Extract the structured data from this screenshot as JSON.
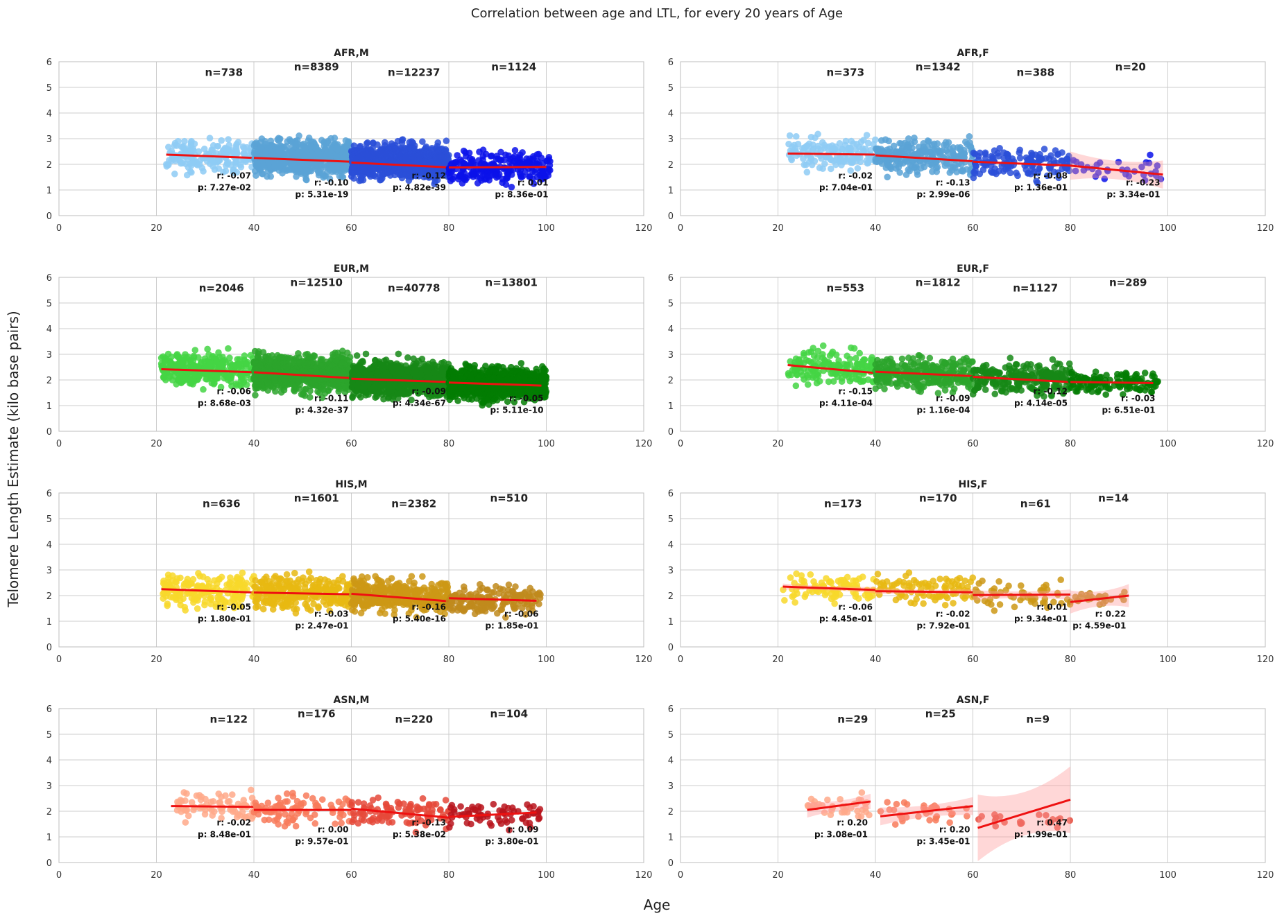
{
  "figure": {
    "title": "Correlation between age and LTL, for every 20 years of Age",
    "xlabel": "Age",
    "ylabel": "Telomere Length Estimate (kilo base pairs)"
  },
  "chart_data": [
    {
      "type": "scatter",
      "title": "AFR,M",
      "xlim": [
        0,
        120
      ],
      "ylim": [
        0,
        6
      ],
      "x_ticks": [
        0,
        20,
        40,
        60,
        80,
        100,
        120
      ],
      "y_ticks": [
        0,
        1,
        2,
        3,
        4,
        5,
        6
      ],
      "grid": true,
      "colors": [
        "#8ecbf5",
        "#5ba3d6",
        "#2a4fd8",
        "#0a12ea"
      ],
      "bins": [
        {
          "x_range": [
            22,
            40
          ],
          "y_center": 2.3,
          "y_spread": 0.9,
          "n": "n=738",
          "r": "r: -0.07",
          "p": "p: 7.27e-02",
          "fit": [
            [
              22,
              2.38
            ],
            [
              40,
              2.25
            ]
          ]
        },
        {
          "x_range": [
            40,
            60
          ],
          "y_center": 2.25,
          "y_spread": 1.0,
          "n": "n=8389",
          "r": "r: -0.10",
          "p": "p: 5.31e-19",
          "fit": [
            [
              40,
              2.25
            ],
            [
              60,
              2.1
            ]
          ]
        },
        {
          "x_range": [
            60,
            80
          ],
          "y_center": 2.1,
          "y_spread": 1.0,
          "n": "n=12237",
          "r": "r: -0.12",
          "p": "p: 4.82e-39",
          "fit": [
            [
              60,
              2.07
            ],
            [
              80,
              1.88
            ]
          ]
        },
        {
          "x_range": [
            80,
            101
          ],
          "y_center": 1.9,
          "y_spread": 0.9,
          "n": "n=1124",
          "r": "r: 0.01",
          "p": "p: 8.36e-01",
          "fit": [
            [
              80,
              1.88
            ],
            [
              100,
              1.9
            ]
          ]
        }
      ]
    },
    {
      "type": "scatter",
      "title": "AFR,F",
      "xlim": [
        0,
        120
      ],
      "ylim": [
        0,
        6
      ],
      "x_ticks": [
        0,
        20,
        40,
        60,
        80,
        100,
        120
      ],
      "y_ticks": [
        0,
        1,
        2,
        3,
        4,
        5,
        6
      ],
      "grid": true,
      "colors": [
        "#8ecbf5",
        "#5ba3d6",
        "#2a4fd8",
        "#0a12ea"
      ],
      "bins": [
        {
          "x_range": [
            22,
            40
          ],
          "y_center": 2.4,
          "y_spread": 0.9,
          "n": "n=373",
          "r": "r: -0.02",
          "p": "p: 7.04e-01",
          "fit": [
            [
              22,
              2.42
            ],
            [
              40,
              2.38
            ]
          ]
        },
        {
          "x_range": [
            40,
            60
          ],
          "y_center": 2.3,
          "y_spread": 1.0,
          "n": "n=1342",
          "r": "r: -0.13",
          "p": "p: 2.99e-06",
          "fit": [
            [
              40,
              2.35
            ],
            [
              60,
              2.12
            ]
          ]
        },
        {
          "x_range": [
            60,
            80
          ],
          "y_center": 2.05,
          "y_spread": 0.9,
          "n": "n=388",
          "r": "r: -0.08",
          "p": "p: 1.36e-01",
          "fit": [
            [
              60,
              2.1
            ],
            [
              80,
              1.95
            ]
          ]
        },
        {
          "x_range": [
            80,
            99
          ],
          "y_center": 1.8,
          "y_spread": 0.7,
          "n": "n=20",
          "r": "r: -0.23",
          "p": "p: 3.34e-01",
          "fit": [
            [
              80,
              1.95
            ],
            [
              99,
              1.6
            ]
          ],
          "ci": 0.55
        }
      ]
    },
    {
      "type": "scatter",
      "title": "EUR,M",
      "xlim": [
        0,
        120
      ],
      "ylim": [
        0,
        6
      ],
      "x_ticks": [
        0,
        20,
        40,
        60,
        80,
        100,
        120
      ],
      "y_ticks": [
        0,
        1,
        2,
        3,
        4,
        5,
        6
      ],
      "grid": true,
      "colors": [
        "#44d544",
        "#2ca52c",
        "#168816",
        "#027d02"
      ],
      "bins": [
        {
          "x_range": [
            21,
            40
          ],
          "y_center": 2.4,
          "y_spread": 0.95,
          "n": "n=2046",
          "r": "r: -0.06",
          "p": "p: 8.68e-03",
          "fit": [
            [
              21,
              2.42
            ],
            [
              40,
              2.3
            ]
          ]
        },
        {
          "x_range": [
            40,
            60
          ],
          "y_center": 2.25,
          "y_spread": 1.0,
          "n": "n=12510",
          "r": "r: -0.11",
          "p": "p: 4.32e-37",
          "fit": [
            [
              40,
              2.3
            ],
            [
              60,
              2.07
            ]
          ]
        },
        {
          "x_range": [
            60,
            80
          ],
          "y_center": 2.05,
          "y_spread": 1.0,
          "n": "n=40778",
          "r": "r: -0.09",
          "p": "p: 4.34e-67",
          "fit": [
            [
              60,
              2.05
            ],
            [
              80,
              1.92
            ]
          ]
        },
        {
          "x_range": [
            80,
            100
          ],
          "y_center": 1.85,
          "y_spread": 0.9,
          "n": "n=13801",
          "r": "r: -0.05",
          "p": "p: 5.11e-10",
          "fit": [
            [
              80,
              1.9
            ],
            [
              99,
              1.78
            ]
          ]
        }
      ]
    },
    {
      "type": "scatter",
      "title": "EUR,F",
      "xlim": [
        0,
        120
      ],
      "ylim": [
        0,
        6
      ],
      "x_ticks": [
        0,
        20,
        40,
        60,
        80,
        100,
        120
      ],
      "y_ticks": [
        0,
        1,
        2,
        3,
        4,
        5,
        6
      ],
      "grid": true,
      "colors": [
        "#44d544",
        "#2ca52c",
        "#168816",
        "#027d02"
      ],
      "bins": [
        {
          "x_range": [
            22,
            40
          ],
          "y_center": 2.5,
          "y_spread": 0.95,
          "n": "n=553",
          "r": "r: -0.15",
          "p": "p: 4.11e-04",
          "fit": [
            [
              22,
              2.58
            ],
            [
              40,
              2.27
            ]
          ]
        },
        {
          "x_range": [
            40,
            60
          ],
          "y_center": 2.25,
          "y_spread": 0.95,
          "n": "n=1812",
          "r": "r: -0.09",
          "p": "p: 1.16e-04",
          "fit": [
            [
              40,
              2.32
            ],
            [
              60,
              2.15
            ]
          ]
        },
        {
          "x_range": [
            60,
            80
          ],
          "y_center": 2.05,
          "y_spread": 0.9,
          "n": "n=1127",
          "r": "r: -0.12",
          "p": "p: 4.14e-05",
          "fit": [
            [
              60,
              2.12
            ],
            [
              80,
              1.92
            ]
          ]
        },
        {
          "x_range": [
            80,
            98
          ],
          "y_center": 1.9,
          "y_spread": 0.6,
          "n": "n=289",
          "r": "r: -0.03",
          "p": "p: 6.51e-01",
          "fit": [
            [
              80,
              1.92
            ],
            [
              97,
              1.88
            ]
          ]
        }
      ]
    },
    {
      "type": "scatter",
      "title": "HIS,M",
      "xlim": [
        0,
        120
      ],
      "ylim": [
        0,
        6
      ],
      "x_ticks": [
        0,
        20,
        40,
        60,
        80,
        100,
        120
      ],
      "y_ticks": [
        0,
        1,
        2,
        3,
        4,
        5,
        6
      ],
      "grid": true,
      "colors": [
        "#f8d82a",
        "#e8b812",
        "#cc9815",
        "#c08a1c"
      ],
      "bins": [
        {
          "x_range": [
            21,
            40
          ],
          "y_center": 2.2,
          "y_spread": 0.95,
          "n": "n=636",
          "r": "r: -0.05",
          "p": "p: 1.80e-01",
          "fit": [
            [
              21,
              2.25
            ],
            [
              40,
              2.12
            ]
          ]
        },
        {
          "x_range": [
            40,
            60
          ],
          "y_center": 2.1,
          "y_spread": 1.0,
          "n": "n=1601",
          "r": "r: -0.03",
          "p": "p: 2.47e-01",
          "fit": [
            [
              40,
              2.12
            ],
            [
              60,
              2.05
            ]
          ]
        },
        {
          "x_range": [
            60,
            80
          ],
          "y_center": 2.0,
          "y_spread": 0.95,
          "n": "n=2382",
          "r": "r: -0.16",
          "p": "p: 5.40e-16",
          "fit": [
            [
              60,
              2.07
            ],
            [
              80,
              1.78
            ]
          ]
        },
        {
          "x_range": [
            80,
            99
          ],
          "y_center": 1.85,
          "y_spread": 0.8,
          "n": "n=510",
          "r": "r: -0.06",
          "p": "p: 1.85e-01",
          "fit": [
            [
              80,
              1.9
            ],
            [
              98,
              1.8
            ]
          ]
        }
      ]
    },
    {
      "type": "scatter",
      "title": "HIS,F",
      "xlim": [
        0,
        120
      ],
      "ylim": [
        0,
        6
      ],
      "x_ticks": [
        0,
        20,
        40,
        60,
        80,
        100,
        120
      ],
      "y_ticks": [
        0,
        1,
        2,
        3,
        4,
        5,
        6
      ],
      "grid": true,
      "colors": [
        "#f8d82a",
        "#e8b812",
        "#cc9815",
        "#c08a1c"
      ],
      "bins": [
        {
          "x_range": [
            21,
            40
          ],
          "y_center": 2.3,
          "y_spread": 0.8,
          "n": "n=173",
          "r": "r: -0.06",
          "p": "p: 4.45e-01",
          "fit": [
            [
              21,
              2.35
            ],
            [
              40,
              2.22
            ]
          ],
          "ci": 0.12
        },
        {
          "x_range": [
            40,
            60
          ],
          "y_center": 2.2,
          "y_spread": 0.8,
          "n": "n=170",
          "r": "r: -0.02",
          "p": "p: 7.92e-01",
          "fit": [
            [
              40,
              2.17
            ],
            [
              60,
              2.13
            ]
          ],
          "ci": 0.12
        },
        {
          "x_range": [
            60,
            80
          ],
          "y_center": 2.0,
          "y_spread": 0.75,
          "n": "n=61",
          "r": "r: 0.01",
          "p": "p: 9.34e-01",
          "fit": [
            [
              60,
              2.02
            ],
            [
              80,
              2.04
            ]
          ],
          "ci": 0.2
        },
        {
          "x_range": [
            80,
            92
          ],
          "y_center": 1.85,
          "y_spread": 0.5,
          "n": "n=14",
          "r": "r: 0.22",
          "p": "p: 4.59e-01",
          "fit": [
            [
              80,
              1.75
            ],
            [
              92,
              2.0
            ]
          ],
          "ci": 0.45
        }
      ]
    },
    {
      "type": "scatter",
      "title": "ASN,M",
      "xlim": [
        0,
        120
      ],
      "ylim": [
        0,
        6
      ],
      "x_ticks": [
        0,
        20,
        40,
        60,
        80,
        100,
        120
      ],
      "y_ticks": [
        0,
        1,
        2,
        3,
        4,
        5,
        6
      ],
      "grid": true,
      "colors": [
        "#ffa98a",
        "#f87a5a",
        "#e5493a",
        "#b8141c"
      ],
      "bins": [
        {
          "x_range": [
            24,
            40
          ],
          "y_center": 2.2,
          "y_spread": 0.8,
          "n": "n=122",
          "r": "r: -0.02",
          "p": "p: 8.48e-01",
          "fit": [
            [
              23,
              2.2
            ],
            [
              40,
              2.17
            ]
          ]
        },
        {
          "x_range": [
            40,
            60
          ],
          "y_center": 2.05,
          "y_spread": 0.9,
          "n": "n=176",
          "r": "r: 0.00",
          "p": "p: 9.57e-01",
          "fit": [
            [
              40,
              2.05
            ],
            [
              60,
              2.05
            ]
          ]
        },
        {
          "x_range": [
            60,
            80
          ],
          "y_center": 1.95,
          "y_spread": 0.9,
          "n": "n=220",
          "r": "r: -0.13",
          "p": "p: 5.38e-02",
          "fit": [
            [
              60,
              2.1
            ],
            [
              80,
              1.75
            ]
          ]
        },
        {
          "x_range": [
            80,
            99
          ],
          "y_center": 1.85,
          "y_spread": 0.75,
          "n": "n=104",
          "r": "r: 0.09",
          "p": "p: 3.80e-01",
          "fit": [
            [
              80,
              1.78
            ],
            [
              98,
              1.95
            ]
          ]
        }
      ]
    },
    {
      "type": "scatter",
      "title": "ASN,F",
      "xlim": [
        0,
        120
      ],
      "ylim": [
        0,
        6
      ],
      "x_ticks": [
        0,
        20,
        40,
        60,
        80,
        100,
        120
      ],
      "y_ticks": [
        0,
        1,
        2,
        3,
        4,
        5,
        6
      ],
      "grid": true,
      "colors": [
        "#ffa98a",
        "#f87a5a",
        "#e5493a"
      ],
      "bins": [
        {
          "x_range": [
            26,
            39
          ],
          "y_center": 2.2,
          "y_spread": 0.65,
          "n": "n=29",
          "r": "r: 0.20",
          "p": "p: 3.08e-01",
          "fit": [
            [
              26,
              2.05
            ],
            [
              39,
              2.38
            ]
          ],
          "ci": 0.3
        },
        {
          "x_range": [
            41,
            60
          ],
          "y_center": 1.9,
          "y_spread": 0.7,
          "n": "n=25",
          "r": "r: 0.20",
          "p": "p: 3.45e-01",
          "fit": [
            [
              41,
              1.8
            ],
            [
              60,
              2.2
            ]
          ],
          "ci": 0.35
        },
        {
          "x_range": [
            61,
            80
          ],
          "y_center": 1.6,
          "y_spread": 0.5,
          "n": "n=9",
          "r": "r: 0.47",
          "p": "p: 1.99e-01",
          "fit": [
            [
              61,
              1.35
            ],
            [
              80,
              2.45
            ]
          ],
          "ci": 1.3
        }
      ]
    }
  ]
}
